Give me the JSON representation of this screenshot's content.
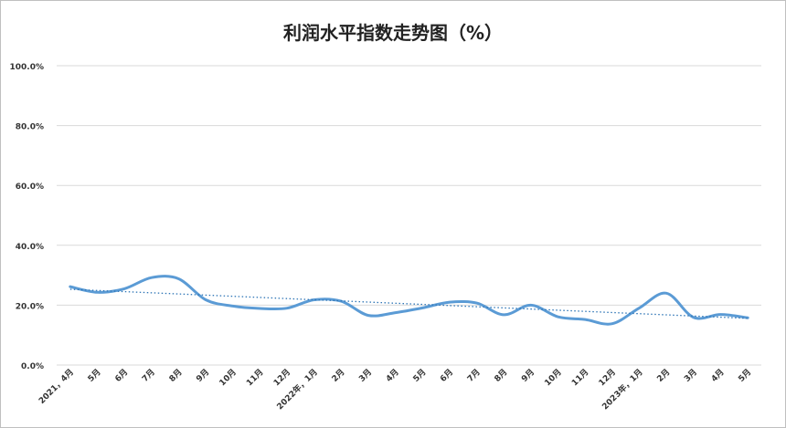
{
  "chart_data": {
    "type": "line",
    "title": "利润水平指数走势图（%）",
    "xlabel": "",
    "ylabel": "",
    "ylim": [
      0,
      100
    ],
    "y_ticks": [
      "0.0%",
      "20.0%",
      "40.0%",
      "60.0%",
      "80.0%",
      "100.0%"
    ],
    "y_tick_values": [
      0,
      20,
      40,
      60,
      80,
      100
    ],
    "grid": true,
    "legend": "none",
    "categories": [
      "2021，4月",
      "5月",
      "6月",
      "7月",
      "8月",
      "9月",
      "10月",
      "11月",
      "12月",
      "2022年，1月",
      "2月",
      "3月",
      "4月",
      "5月",
      "6月",
      "7月",
      "8月",
      "9月",
      "10月",
      "11月",
      "12月",
      "2023年，1月",
      "2月",
      "3月",
      "4月",
      "5月"
    ],
    "series": [
      {
        "values": [
          26.2,
          24.3,
          25.5,
          29.2,
          28.8,
          21.8,
          19.7,
          18.9,
          19.0,
          21.8,
          21.3,
          16.6,
          17.5,
          19.1,
          21.0,
          20.7,
          16.8,
          20.0,
          16.1,
          15.2,
          13.8,
          19.1,
          24.0,
          15.9,
          16.9,
          15.8
        ],
        "color": "#5b9bd5"
      }
    ],
    "trendline": {
      "type": "linear",
      "start": 25.3,
      "end": 15.6,
      "color": "#2e75b6",
      "style": "dotted"
    }
  }
}
